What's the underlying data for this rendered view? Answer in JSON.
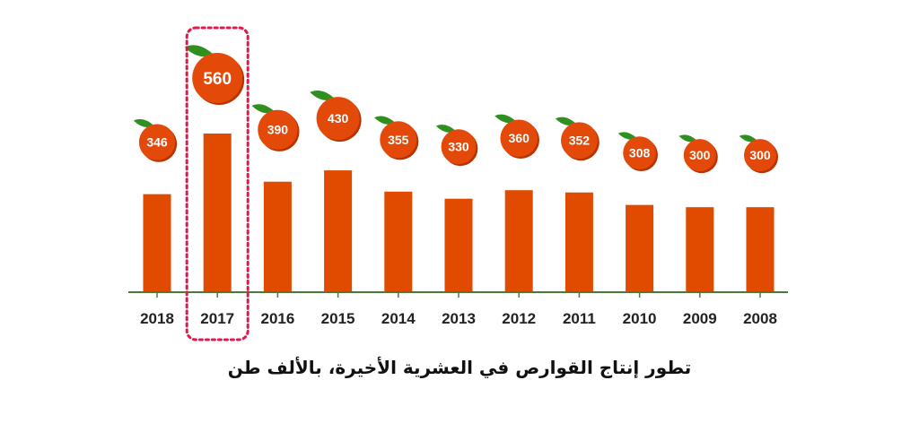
{
  "chart_data": {
    "type": "bar",
    "categories": [
      "2018",
      "2017",
      "2016",
      "2015",
      "2014",
      "2013",
      "2012",
      "2011",
      "2010",
      "2009",
      "2008"
    ],
    "values": [
      346,
      560,
      390,
      430,
      355,
      330,
      360,
      352,
      308,
      300,
      300
    ],
    "highlight": "2017",
    "title": "تطور إنتاج القوارص في العشرية الأخيرة، بالألف طن",
    "xlabel": "",
    "ylabel": "",
    "ylim": [
      0,
      560
    ],
    "grid": false,
    "legend": "none",
    "colors": {
      "bar": "#e04b00",
      "fruit": "#e34a0a",
      "fruit_shadow": "#b83300",
      "leaf": "#2f8f1f",
      "axis": "#4a7a3a",
      "highlight_border": "#e0194a"
    }
  }
}
